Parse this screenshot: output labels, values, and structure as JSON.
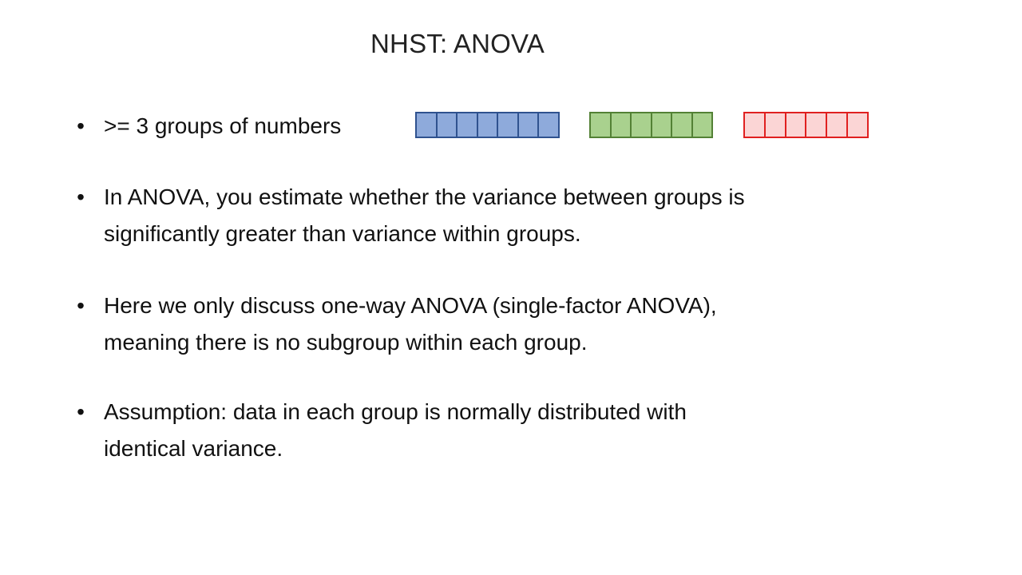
{
  "slide": {
    "title": "NHST: ANOVA",
    "bullet_char": "•",
    "bullets": [
      {
        "text": ">= 3 groups of numbers"
      },
      {
        "lines": [
          "In ANOVA, you estimate whether the variance between groups is",
          "significantly greater than variance within groups."
        ]
      },
      {
        "lines": [
          "Here we only discuss one-way ANOVA (single-factor ANOVA),",
          "meaning there is no subgroup within each group."
        ]
      },
      {
        "lines": [
          "Assumption: data in each group is normally distributed with",
          "identical variance."
        ]
      }
    ],
    "groups": [
      {
        "name": "blue-group",
        "cells": 7,
        "fill": "#8eaadb",
        "border": "#2f528f"
      },
      {
        "name": "green-group",
        "cells": 6,
        "fill": "#a9d18e",
        "border": "#538135"
      },
      {
        "name": "red-group",
        "cells": 6,
        "fill": "#fbd5d5",
        "border": "#e02020"
      }
    ]
  }
}
